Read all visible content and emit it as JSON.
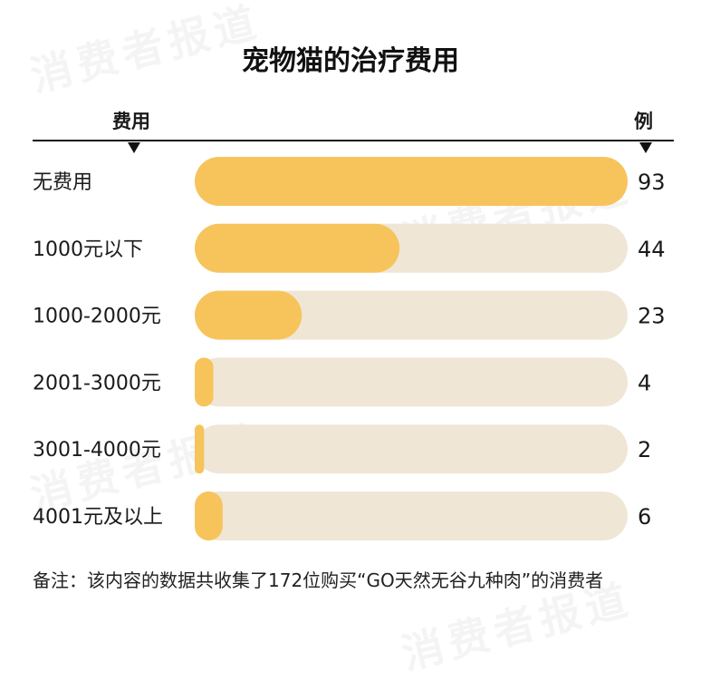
{
  "title": "宠物猫的治疗费用",
  "header": {
    "left_label": "费用",
    "right_label": "例"
  },
  "watermark": "消费者报道",
  "colors": {
    "bar": "#f7c45c",
    "track": "#efe6d6",
    "text": "#1a1a1a"
  },
  "chart_data": {
    "type": "bar",
    "orientation": "horizontal",
    "categories": [
      "无费用",
      "1000元以下",
      "1000-2000元",
      "2001-3000元",
      "3001-4000元",
      "4001元及以上"
    ],
    "values": [
      93,
      44,
      23,
      4,
      2,
      6
    ],
    "value_labels": [
      "93",
      "44",
      "23",
      "4",
      "2",
      "6"
    ],
    "xlim": [
      0,
      93
    ],
    "grid": false,
    "legend": "none"
  },
  "footnote": "备注：该内容的数据共收集了172位购买“GO天然无谷九种肉”的消费者"
}
